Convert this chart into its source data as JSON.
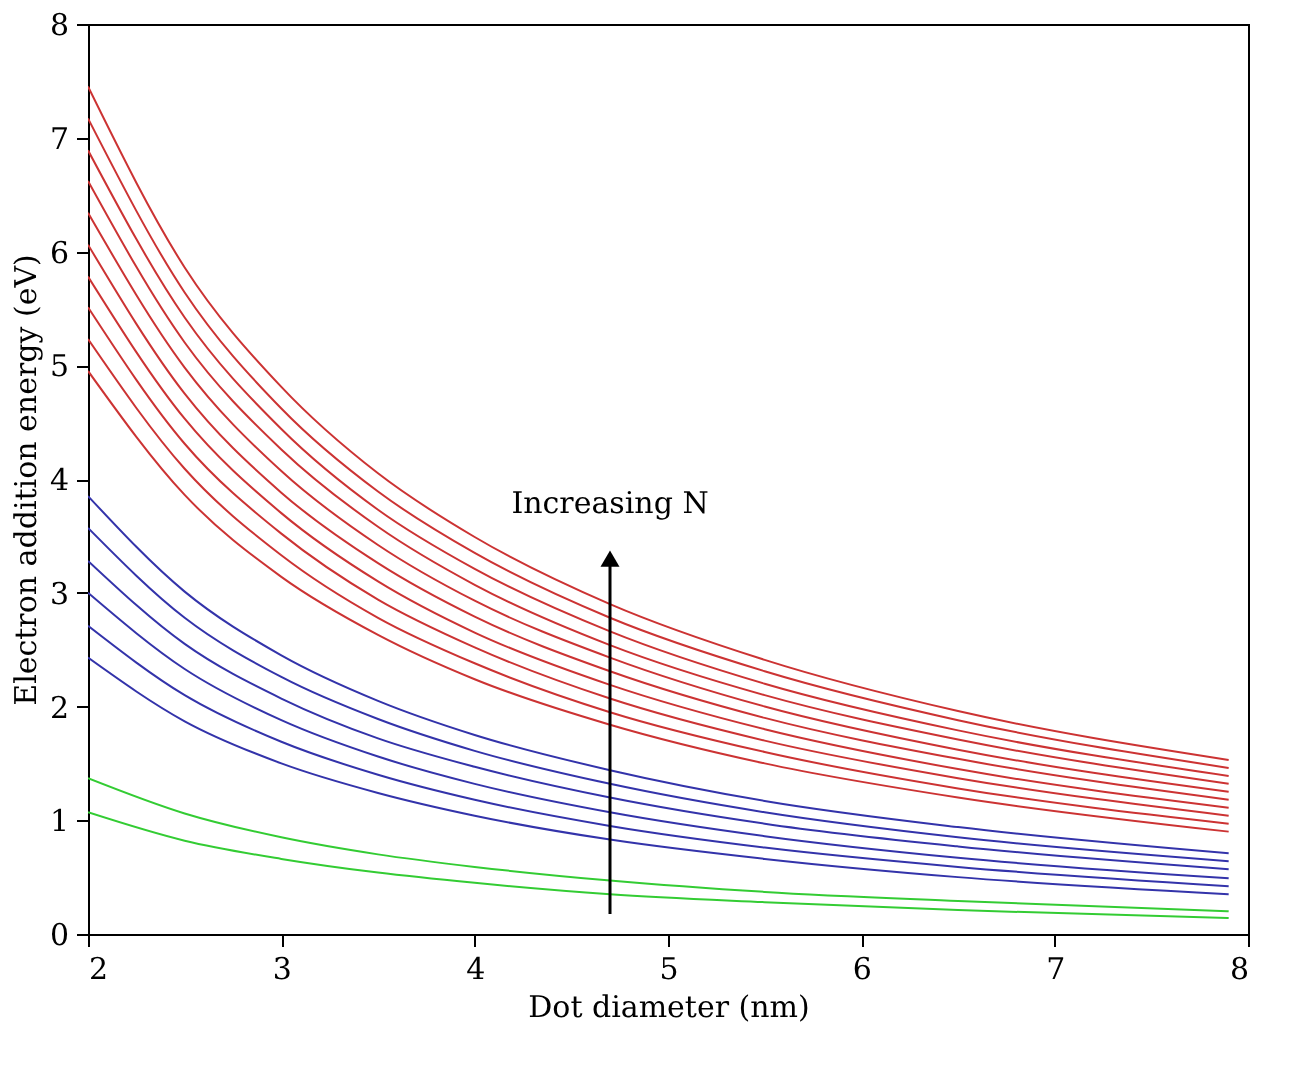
{
  "chart_data": {
    "type": "line",
    "xlabel": "Dot diameter (nm)",
    "ylabel": "Electron addition energy (eV)",
    "x": [
      2,
      2.5,
      3,
      3.5,
      4,
      4.7,
      5.5,
      6.5,
      7.9
    ],
    "xlim": [
      2,
      8
    ],
    "xticks": [
      2,
      3,
      4,
      5,
      6,
      7,
      8
    ],
    "ylim": [
      0,
      8
    ],
    "yticks": [
      0,
      1,
      2,
      3,
      4,
      5,
      6,
      7,
      8
    ],
    "grid": false,
    "legend": false,
    "marker": "none",
    "line_style": "solid",
    "series": [
      {
        "color": "#33cc33",
        "values": [
          1.07,
          0.82,
          0.66,
          0.54,
          0.45,
          0.35,
          0.28,
          0.21,
          0.14
        ]
      },
      {
        "color": "#33cc33",
        "values": [
          1.37,
          1.06,
          0.85,
          0.7,
          0.59,
          0.47,
          0.37,
          0.29,
          0.2
        ]
      },
      {
        "color": "#3333aa",
        "values": [
          2.43,
          1.87,
          1.5,
          1.24,
          1.04,
          0.83,
          0.66,
          0.5,
          0.35
        ]
      },
      {
        "color": "#3333aa",
        "values": [
          2.71,
          2.1,
          1.69,
          1.4,
          1.18,
          0.95,
          0.76,
          0.59,
          0.42
        ]
      },
      {
        "color": "#3333aa",
        "values": [
          3.0,
          2.33,
          1.88,
          1.56,
          1.32,
          1.07,
          0.86,
          0.67,
          0.49
        ]
      },
      {
        "color": "#3333aa",
        "values": [
          3.28,
          2.55,
          2.07,
          1.72,
          1.47,
          1.2,
          0.97,
          0.77,
          0.57
        ]
      },
      {
        "color": "#3333aa",
        "values": [
          3.57,
          2.78,
          2.26,
          1.89,
          1.61,
          1.32,
          1.07,
          0.85,
          0.64
        ]
      },
      {
        "color": "#3333aa",
        "values": [
          3.85,
          3.01,
          2.45,
          2.05,
          1.75,
          1.44,
          1.17,
          0.94,
          0.71
        ]
      },
      {
        "color": "#cc3333",
        "values": [
          4.95,
          3.86,
          3.14,
          2.63,
          2.24,
          1.84,
          1.5,
          1.2,
          0.9
        ]
      },
      {
        "color": "#cc3333",
        "values": [
          5.23,
          4.09,
          3.33,
          2.78,
          2.38,
          1.95,
          1.6,
          1.28,
          0.97
        ]
      },
      {
        "color": "#cc3333",
        "values": [
          5.51,
          4.31,
          3.52,
          2.94,
          2.52,
          2.07,
          1.7,
          1.37,
          1.04
        ]
      },
      {
        "color": "#cc3333",
        "values": [
          5.78,
          4.53,
          3.7,
          3.1,
          2.65,
          2.19,
          1.8,
          1.45,
          1.11
        ]
      },
      {
        "color": "#cc3333",
        "values": [
          6.06,
          4.75,
          3.88,
          3.26,
          2.79,
          2.31,
          1.9,
          1.54,
          1.18
        ]
      },
      {
        "color": "#cc3333",
        "values": [
          6.34,
          4.98,
          4.07,
          3.42,
          2.93,
          2.43,
          2.0,
          1.62,
          1.25
        ]
      },
      {
        "color": "#cc3333",
        "values": [
          6.62,
          5.2,
          4.26,
          3.58,
          3.07,
          2.54,
          2.1,
          1.71,
          1.32
        ]
      },
      {
        "color": "#cc3333",
        "values": [
          6.89,
          5.42,
          4.44,
          3.73,
          3.21,
          2.66,
          2.2,
          1.79,
          1.39
        ]
      },
      {
        "color": "#cc3333",
        "values": [
          7.17,
          5.64,
          4.62,
          3.89,
          3.35,
          2.78,
          2.31,
          1.88,
          1.46
        ]
      },
      {
        "color": "#cc3333",
        "values": [
          7.45,
          5.86,
          4.81,
          4.05,
          3.49,
          2.9,
          2.41,
          1.96,
          1.53
        ]
      }
    ],
    "annotations": [
      {
        "text": "Increasing N",
        "x": 4.7,
        "y": 3.3
      }
    ]
  }
}
